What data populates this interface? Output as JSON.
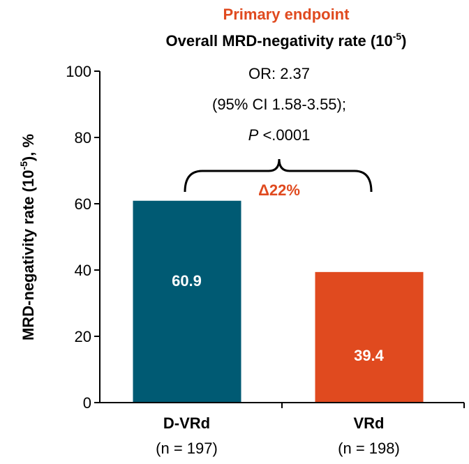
{
  "chart_data": {
    "type": "bar",
    "title": "Primary endpoint",
    "subtitle": {
      "text": "Overall MRD-negativity rate (10",
      "superscript": "-5",
      "suffix": ")"
    },
    "y_label": {
      "text": "MRD-negativity rate (10",
      "superscript": "-5",
      "suffix": "), %"
    },
    "categories": [
      "D-VRd",
      "VRd"
    ],
    "category_notes": [
      "(n = 197)",
      "(n = 198)"
    ],
    "values": [
      60.9,
      39.4
    ],
    "colors": [
      "#005a73",
      "#e04a1f"
    ],
    "ylim": [
      0,
      100
    ],
    "yticks": [
      0,
      20,
      40,
      60,
      80,
      100
    ],
    "annotation": {
      "line1": "OR: 2.37",
      "line2": "(95% CI 1.58-3.55);",
      "p_symbol": "P",
      "p_value": " <.0001",
      "delta": "Δ22%"
    }
  }
}
